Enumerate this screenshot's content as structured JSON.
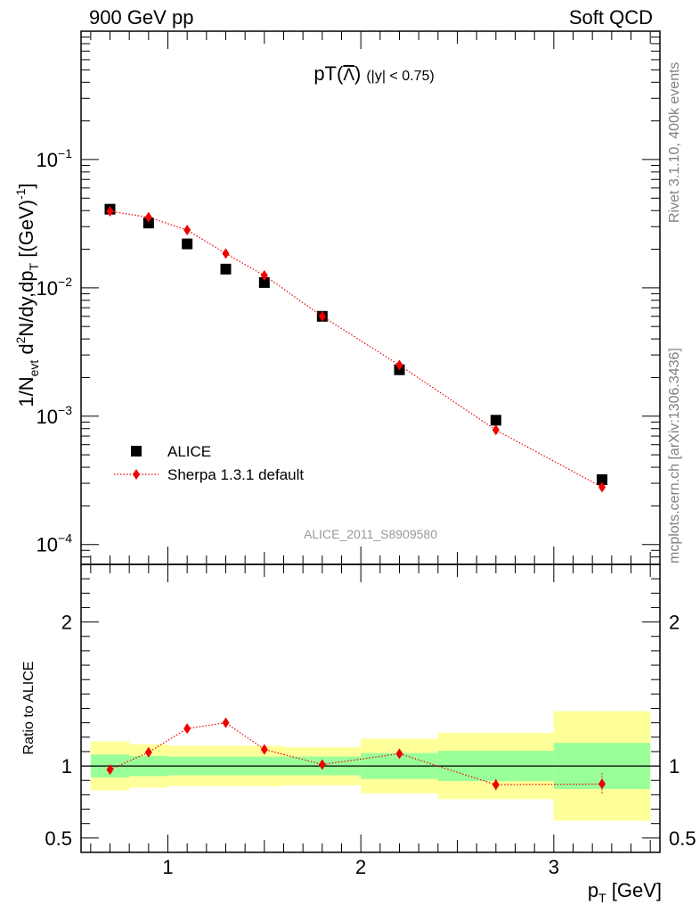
{
  "header": {
    "left": "900 GeV pp",
    "right": "Soft QCD"
  },
  "side_labels": {
    "rivet": "Rivet 3.1.10,  400k events",
    "mcplots": "mcplots.cern.ch [arXiv:1306.3436]"
  },
  "chart_data": [
    {
      "type": "scatter",
      "panel": "main",
      "title_main": "pT(",
      "title_lambda": "Λ",
      "title_close": ")",
      "title_cut": "(|y| < 0.75)",
      "ylabel": "1/N_evt d²N/dy,dp_T [(GeV)⁻¹]",
      "ylabel_parts": {
        "a": "1/N",
        "b": "evt",
        "c": " d",
        "d": "2",
        "e": "N/dy,dp",
        "f": "T",
        "g": " [(GeV)",
        "h": "-1",
        "i": "]"
      },
      "yscale": "log",
      "ylim": [
        7e-05,
        1.0
      ],
      "xlim": [
        0.55,
        3.55
      ],
      "y_ticks": [
        {
          "value": 0.1,
          "base": "10",
          "exp": "−1"
        },
        {
          "value": 0.01,
          "base": "10",
          "exp": "−2"
        },
        {
          "value": 0.001,
          "base": "10",
          "exp": "−3"
        },
        {
          "value": 0.0001,
          "base": "10",
          "exp": "−4"
        }
      ],
      "watermark": "ALICE_2011_S8909580",
      "legend": {
        "position": "lower-left",
        "data_label": "ALICE",
        "mc_label": "Sherpa 1.3.1 default"
      },
      "series": [
        {
          "name": "ALICE",
          "marker": "square",
          "color": "#000000",
          "x": [
            0.7,
            0.9,
            1.1,
            1.3,
            1.5,
            1.8,
            2.2,
            2.7,
            3.25
          ],
          "y": [
            0.041,
            0.032,
            0.022,
            0.014,
            0.011,
            0.006,
            0.0023,
            0.00093,
            0.00032
          ]
        },
        {
          "name": "Sherpa 1.3.1 default",
          "marker": "diamond",
          "color": "#ee0000",
          "line": "dotted",
          "x": [
            0.7,
            0.9,
            1.1,
            1.3,
            1.5,
            1.8,
            2.2,
            2.7,
            3.25
          ],
          "y": [
            0.0395,
            0.0355,
            0.0282,
            0.0185,
            0.0125,
            0.006,
            0.0025,
            0.00078,
            0.00028
          ],
          "y_err": [
            0,
            0,
            0,
            0,
            0,
            0,
            0,
            0,
            2e-05
          ]
        }
      ]
    },
    {
      "type": "scatter",
      "panel": "ratio",
      "ylabel": "Ratio to ALICE",
      "xlabel_parts": {
        "a": "p",
        "b": "T",
        "c": " [GeV]"
      },
      "ylim": [
        0.4,
        2.4
      ],
      "xlim": [
        0.55,
        3.55
      ],
      "y_ticks": [
        {
          "value": 0.5,
          "label": "0.5"
        },
        {
          "value": 1,
          "label": "1"
        },
        {
          "value": 2,
          "label": "2"
        }
      ],
      "x_ticks": [
        {
          "value": 1,
          "label": "1"
        },
        {
          "value": 2,
          "label": "2"
        },
        {
          "value": 3,
          "label": "3"
        }
      ],
      "reference": 1,
      "bands": [
        {
          "x": [
            0.6,
            0.8
          ],
          "stat": [
            0.92,
            1.08
          ],
          "total": [
            0.83,
            1.17
          ]
        },
        {
          "x": [
            0.8,
            1.0
          ],
          "stat": [
            0.93,
            1.07
          ],
          "total": [
            0.85,
            1.15
          ]
        },
        {
          "x": [
            1.0,
            1.6
          ],
          "stat": [
            0.935,
            1.065
          ],
          "total": [
            0.86,
            1.14
          ]
        },
        {
          "x": [
            1.6,
            2.0
          ],
          "stat": [
            0.935,
            1.065
          ],
          "total": [
            0.865,
            1.13
          ]
        },
        {
          "x": [
            2.0,
            2.4
          ],
          "stat": [
            0.91,
            1.09
          ],
          "total": [
            0.81,
            1.19
          ]
        },
        {
          "x": [
            2.4,
            3.0
          ],
          "stat": [
            0.895,
            1.105
          ],
          "total": [
            0.77,
            1.23
          ]
        },
        {
          "x": [
            3.0,
            3.5
          ],
          "stat": [
            0.84,
            1.16
          ],
          "total": [
            0.62,
            1.38
          ]
        }
      ],
      "series": [
        {
          "name": "Sherpa 1.3.1 default / ALICE",
          "marker": "diamond",
          "color": "#ee0000",
          "line": "dotted",
          "x": [
            0.7,
            0.9,
            1.1,
            1.3,
            1.5,
            1.8,
            2.2,
            2.7,
            3.25
          ],
          "y": [
            0.975,
            1.095,
            1.26,
            1.3,
            1.115,
            1.01,
            1.085,
            0.87,
            0.875
          ],
          "y_err": [
            0.01,
            0.01,
            0.015,
            0.015,
            0.01,
            0.01,
            0.02,
            0.04,
            0.075
          ]
        }
      ]
    }
  ],
  "colors": {
    "stat_band": "#99ff99",
    "total_band": "#ffff99",
    "mc": "#ee0000",
    "data": "#000000",
    "side_text": "#808080"
  }
}
